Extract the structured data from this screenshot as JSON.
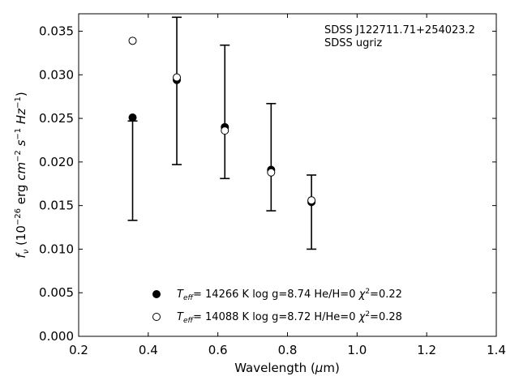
{
  "chart_data": {
    "type": "scatter",
    "annotation": [
      "SDSS J122711.71+254023.2",
      "SDSS ugriz"
    ],
    "xlabel": "Wavelength (μm)",
    "ylabel": "f_ν (10^-26 erg cm^-2 s^-1 Hz^-1)",
    "xlim": [
      0.2,
      1.4
    ],
    "ylim": [
      0.0,
      0.037
    ],
    "xticks": [
      "0.2",
      "0.4",
      "0.6",
      "0.8",
      "1.0",
      "1.2",
      "1.4"
    ],
    "yticks": [
      "0.000",
      "0.005",
      "0.010",
      "0.015",
      "0.020",
      "0.025",
      "0.030",
      "0.035"
    ],
    "grid": false,
    "observed": {
      "x": [
        0.355,
        0.482,
        0.62,
        0.753,
        0.869
      ],
      "lower": [
        0.0133,
        0.0197,
        0.0181,
        0.0144,
        0.01
      ],
      "upper": [
        0.0247,
        0.0366,
        0.0334,
        0.0267,
        0.0185
      ]
    },
    "series": [
      {
        "marker": "filled-circle",
        "x": [
          0.355,
          0.482,
          0.62,
          0.753,
          0.869
        ],
        "y": [
          0.0251,
          0.0294,
          0.024,
          0.0191,
          0.0154
        ]
      },
      {
        "marker": "open-circle",
        "x": [
          0.355,
          0.482,
          0.62,
          0.753,
          0.869
        ],
        "y": [
          0.0339,
          0.0297,
          0.0236,
          0.0188,
          0.0156
        ]
      }
    ],
    "legend": {
      "position": "lower-center",
      "entries": [
        {
          "marker": "filled-circle",
          "teff": "= 14266 K",
          "logg": "log g=8.74",
          "comp": "He/H=0",
          "chi2": "=0.22"
        },
        {
          "marker": "open-circle",
          "teff": "= 14088 K",
          "logg": "log g=8.72",
          "comp": "H/He=0",
          "chi2": "=0.28"
        }
      ]
    }
  }
}
